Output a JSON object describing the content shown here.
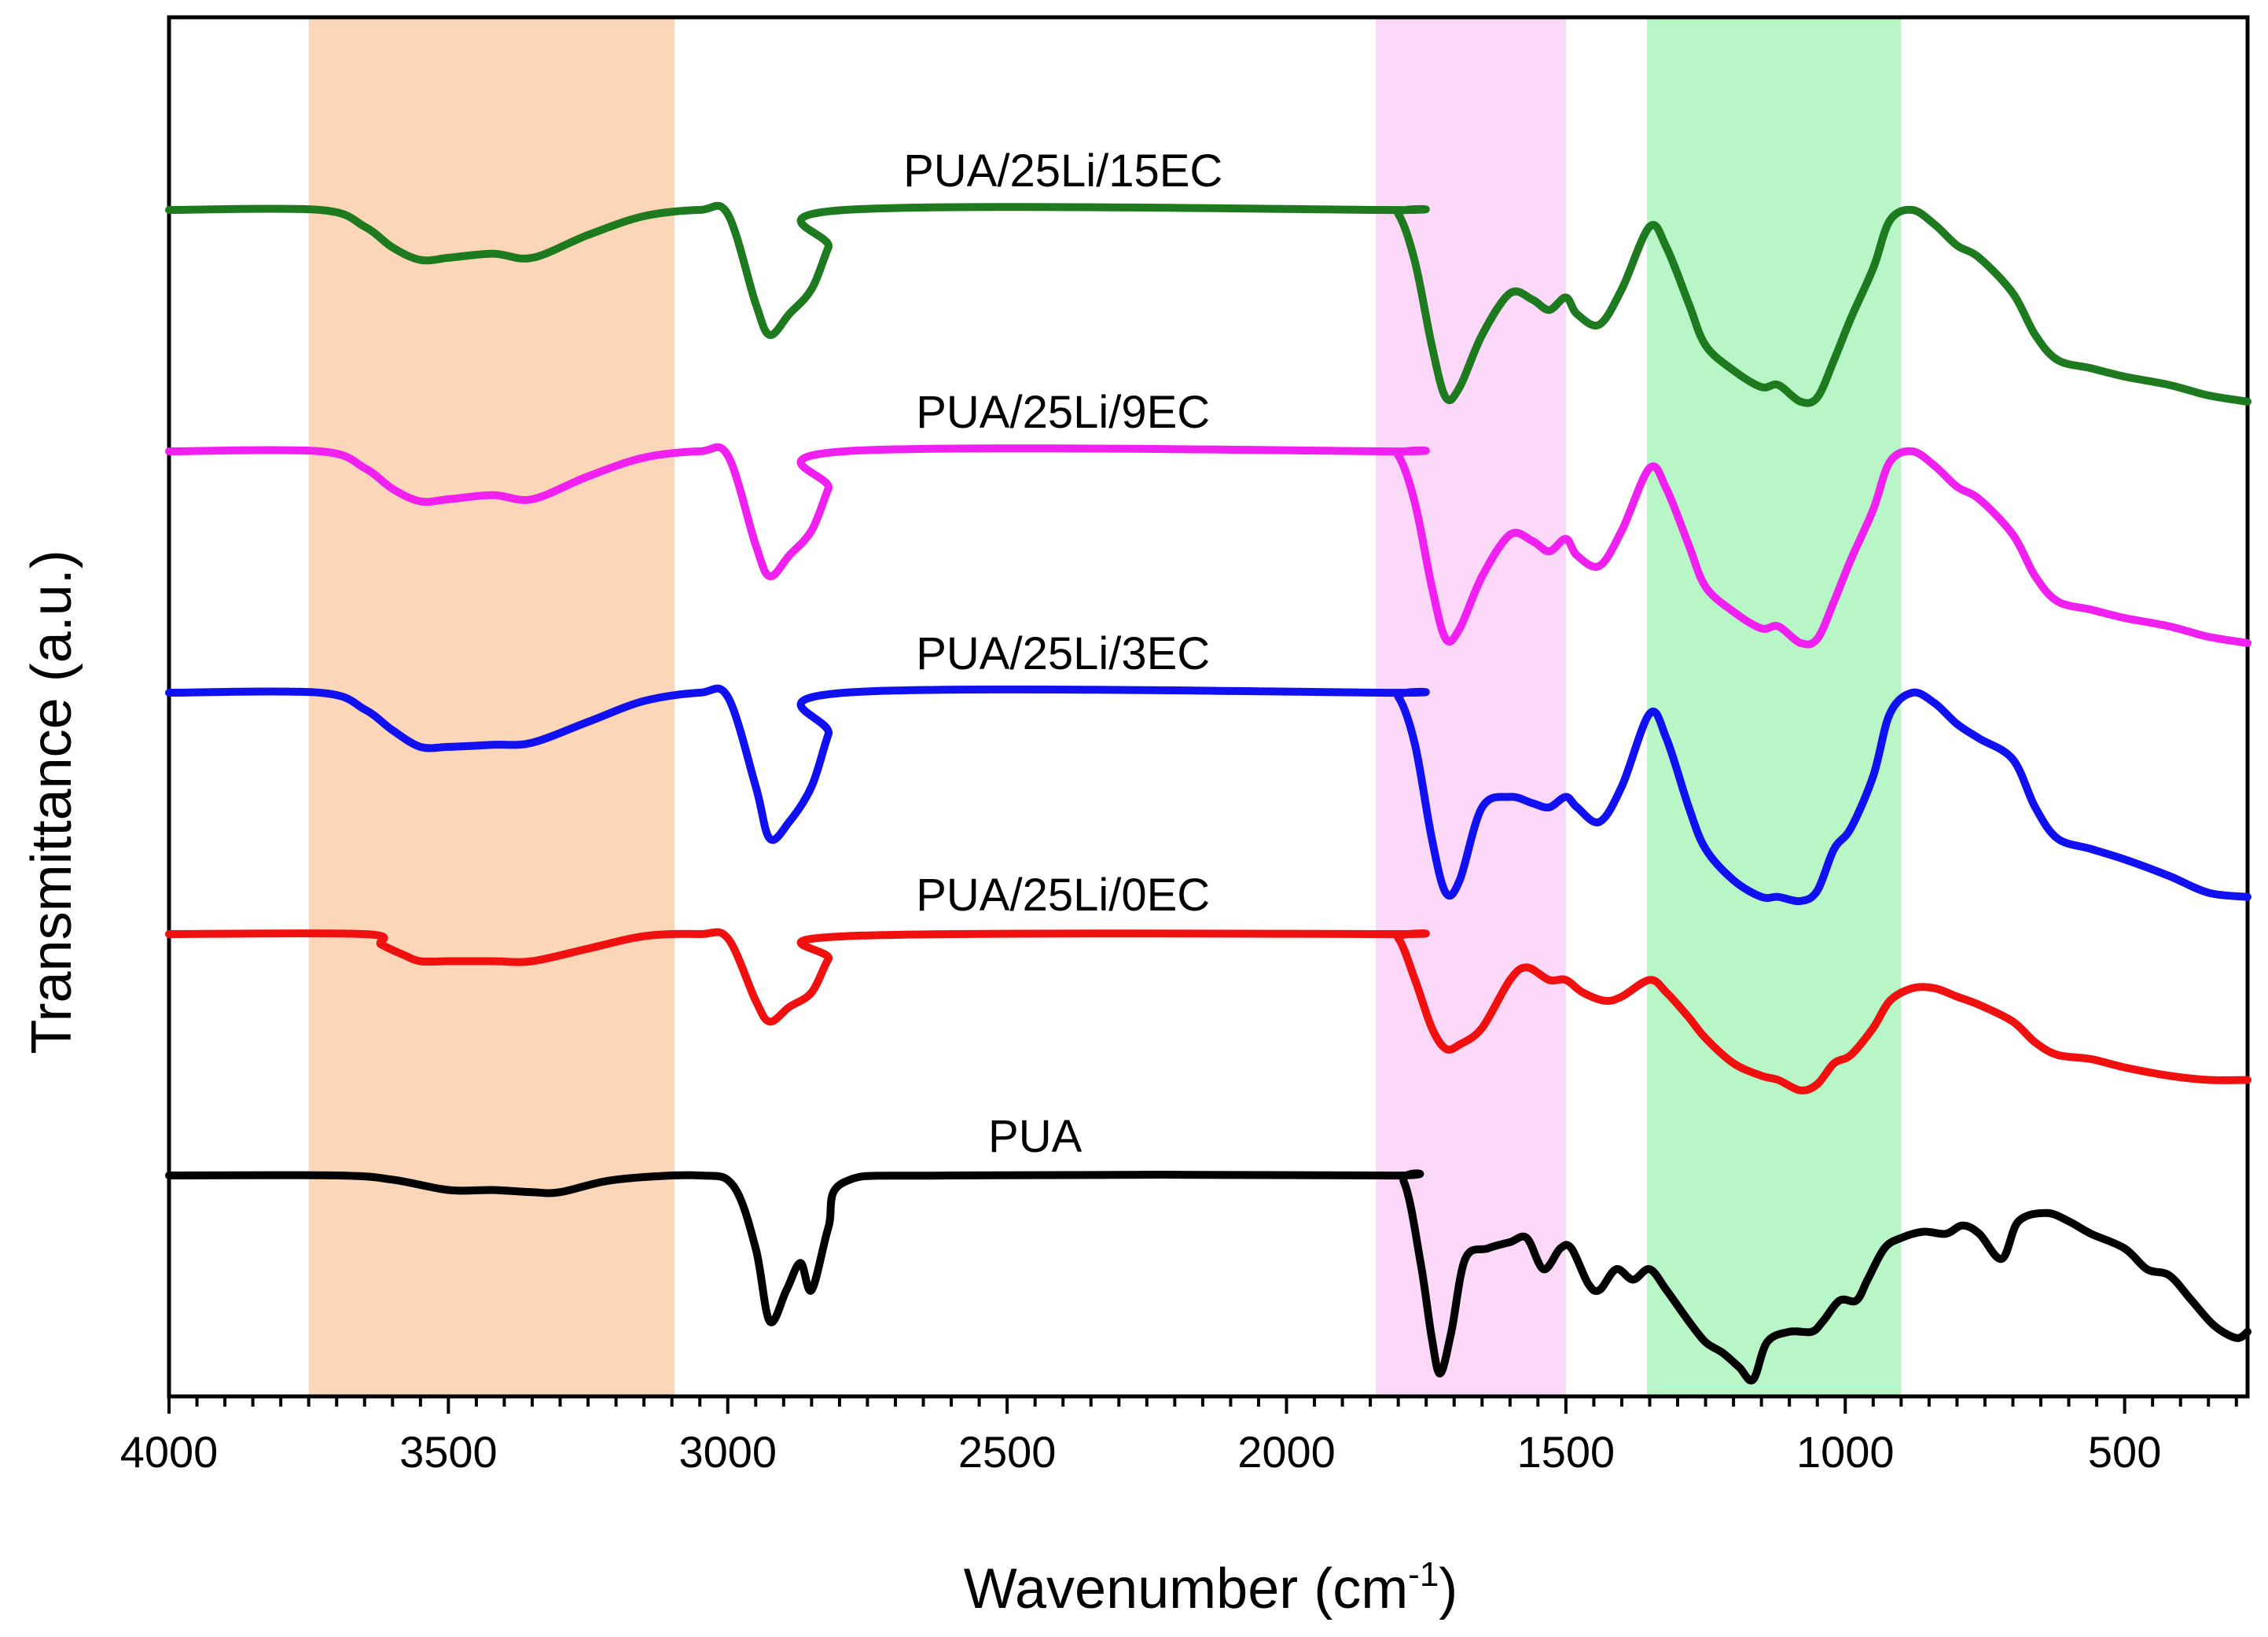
{
  "chart_data": {
    "type": "line",
    "title": "",
    "xlabel": "Wavenumber (cm",
    "xlabel_sup": "-1",
    "xlabel_close": ")",
    "ylabel": "Transmittance (a.u.)",
    "xlim": [
      4000,
      280
    ],
    "xticks": [
      {
        "value": 4000,
        "label": "4000"
      },
      {
        "value": 3500,
        "label": "3500"
      },
      {
        "value": 3000,
        "label": "3000"
      },
      {
        "value": 2500,
        "label": "2500"
      },
      {
        "value": 2000,
        "label": "2000"
      },
      {
        "value": 1500,
        "label": "1500"
      },
      {
        "value": 1000,
        "label": "1000"
      },
      {
        "value": 500,
        "label": "500"
      }
    ],
    "bands": [
      {
        "from": 3750,
        "to": 3095,
        "color": "#fbd6b9"
      },
      {
        "from": 1840,
        "to": 1500,
        "color": "#fbd8f7"
      },
      {
        "from": 1355,
        "to": 900,
        "color": "#b8f6c8"
      }
    ],
    "series": [
      {
        "name": "PUA/25Li/15EC",
        "color": "#1e7a1e",
        "offset": 4,
        "points": [
          [
            4000,
            1.0
          ],
          [
            3730,
            1.0
          ],
          [
            3650,
            0.92
          ],
          [
            3600,
            0.82
          ],
          [
            3550,
            0.76
          ],
          [
            3500,
            0.77
          ],
          [
            3420,
            0.79
          ],
          [
            3350,
            0.77
          ],
          [
            3250,
            0.88
          ],
          [
            3150,
            0.97
          ],
          [
            3050,
            1.0
          ],
          [
            3000,
            0.98
          ],
          [
            2950,
            0.55
          ],
          [
            2925,
            0.4
          ],
          [
            2890,
            0.5
          ],
          [
            2850,
            0.62
          ],
          [
            2820,
            0.82
          ],
          [
            2790,
            1.0
          ],
          [
            1830,
            1.0
          ],
          [
            1800,
            0.98
          ],
          [
            1770,
            0.75
          ],
          [
            1740,
            0.35
          ],
          [
            1715,
            0.1
          ],
          [
            1690,
            0.15
          ],
          [
            1650,
            0.4
          ],
          [
            1600,
            0.6
          ],
          [
            1560,
            0.57
          ],
          [
            1530,
            0.52
          ],
          [
            1500,
            0.58
          ],
          [
            1480,
            0.5
          ],
          [
            1440,
            0.45
          ],
          [
            1400,
            0.62
          ],
          [
            1350,
            0.92
          ],
          [
            1320,
            0.82
          ],
          [
            1280,
            0.55
          ],
          [
            1250,
            0.35
          ],
          [
            1200,
            0.23
          ],
          [
            1150,
            0.15
          ],
          [
            1120,
            0.16
          ],
          [
            1080,
            0.08
          ],
          [
            1050,
            0.1
          ],
          [
            1020,
            0.28
          ],
          [
            990,
            0.48
          ],
          [
            950,
            0.72
          ],
          [
            920,
            0.95
          ],
          [
            880,
            1.0
          ],
          [
            840,
            0.93
          ],
          [
            800,
            0.83
          ],
          [
            760,
            0.77
          ],
          [
            700,
            0.6
          ],
          [
            660,
            0.4
          ],
          [
            620,
            0.28
          ],
          [
            560,
            0.24
          ],
          [
            500,
            0.2
          ],
          [
            420,
            0.16
          ],
          [
            350,
            0.11
          ],
          [
            280,
            0.08
          ]
        ]
      },
      {
        "name": "PUA/25Li/9EC",
        "color": "#f020f0",
        "offset": 3,
        "points": [
          [
            4000,
            1.0
          ],
          [
            3730,
            1.0
          ],
          [
            3650,
            0.92
          ],
          [
            3600,
            0.82
          ],
          [
            3550,
            0.76
          ],
          [
            3500,
            0.77
          ],
          [
            3420,
            0.79
          ],
          [
            3350,
            0.77
          ],
          [
            3250,
            0.88
          ],
          [
            3150,
            0.97
          ],
          [
            3050,
            1.0
          ],
          [
            3000,
            0.98
          ],
          [
            2950,
            0.55
          ],
          [
            2925,
            0.4
          ],
          [
            2890,
            0.5
          ],
          [
            2850,
            0.62
          ],
          [
            2820,
            0.82
          ],
          [
            2790,
            1.0
          ],
          [
            1830,
            1.0
          ],
          [
            1800,
            0.98
          ],
          [
            1770,
            0.75
          ],
          [
            1740,
            0.35
          ],
          [
            1715,
            0.1
          ],
          [
            1690,
            0.15
          ],
          [
            1650,
            0.4
          ],
          [
            1600,
            0.6
          ],
          [
            1560,
            0.57
          ],
          [
            1530,
            0.52
          ],
          [
            1500,
            0.58
          ],
          [
            1480,
            0.5
          ],
          [
            1440,
            0.45
          ],
          [
            1400,
            0.62
          ],
          [
            1350,
            0.92
          ],
          [
            1320,
            0.82
          ],
          [
            1280,
            0.55
          ],
          [
            1250,
            0.35
          ],
          [
            1200,
            0.23
          ],
          [
            1150,
            0.15
          ],
          [
            1120,
            0.16
          ],
          [
            1080,
            0.08
          ],
          [
            1050,
            0.1
          ],
          [
            1020,
            0.28
          ],
          [
            990,
            0.48
          ],
          [
            950,
            0.72
          ],
          [
            920,
            0.95
          ],
          [
            880,
            1.0
          ],
          [
            840,
            0.93
          ],
          [
            800,
            0.83
          ],
          [
            760,
            0.77
          ],
          [
            700,
            0.6
          ],
          [
            660,
            0.4
          ],
          [
            620,
            0.28
          ],
          [
            560,
            0.24
          ],
          [
            500,
            0.2
          ],
          [
            420,
            0.16
          ],
          [
            350,
            0.11
          ],
          [
            280,
            0.08
          ]
        ]
      },
      {
        "name": "PUA/25Li/3EC",
        "color": "#1010f0",
        "offset": 2,
        "points": [
          [
            4000,
            1.0
          ],
          [
            3730,
            1.0
          ],
          [
            3650,
            0.92
          ],
          [
            3600,
            0.82
          ],
          [
            3550,
            0.74
          ],
          [
            3500,
            0.74
          ],
          [
            3420,
            0.75
          ],
          [
            3350,
            0.76
          ],
          [
            3250,
            0.86
          ],
          [
            3150,
            0.96
          ],
          [
            3050,
            1.0
          ],
          [
            3000,
            0.98
          ],
          [
            2950,
            0.55
          ],
          [
            2925,
            0.3
          ],
          [
            2890,
            0.38
          ],
          [
            2850,
            0.55
          ],
          [
            2820,
            0.8
          ],
          [
            2790,
            1.0
          ],
          [
            1830,
            1.0
          ],
          [
            1800,
            0.98
          ],
          [
            1770,
            0.75
          ],
          [
            1740,
            0.3
          ],
          [
            1715,
            0.04
          ],
          [
            1690,
            0.1
          ],
          [
            1650,
            0.45
          ],
          [
            1600,
            0.5
          ],
          [
            1560,
            0.47
          ],
          [
            1530,
            0.45
          ],
          [
            1500,
            0.5
          ],
          [
            1480,
            0.45
          ],
          [
            1440,
            0.38
          ],
          [
            1400,
            0.55
          ],
          [
            1350,
            0.9
          ],
          [
            1320,
            0.78
          ],
          [
            1280,
            0.45
          ],
          [
            1250,
            0.25
          ],
          [
            1200,
            0.1
          ],
          [
            1150,
            0.02
          ],
          [
            1120,
            0.02
          ],
          [
            1080,
            0.0
          ],
          [
            1050,
            0.05
          ],
          [
            1020,
            0.25
          ],
          [
            990,
            0.35
          ],
          [
            950,
            0.6
          ],
          [
            920,
            0.9
          ],
          [
            880,
            1.0
          ],
          [
            840,
            0.95
          ],
          [
            800,
            0.85
          ],
          [
            760,
            0.78
          ],
          [
            700,
            0.68
          ],
          [
            660,
            0.45
          ],
          [
            620,
            0.3
          ],
          [
            560,
            0.25
          ],
          [
            500,
            0.2
          ],
          [
            420,
            0.12
          ],
          [
            350,
            0.04
          ],
          [
            280,
            0.02
          ]
        ]
      },
      {
        "name": "PUA/25Li/0EC",
        "color": "#f01010",
        "offset": 1,
        "points": [
          [
            4000,
            1.0
          ],
          [
            3650,
            1.0
          ],
          [
            3620,
            0.95
          ],
          [
            3580,
            0.9
          ],
          [
            3550,
            0.87
          ],
          [
            3500,
            0.87
          ],
          [
            3420,
            0.87
          ],
          [
            3350,
            0.87
          ],
          [
            3250,
            0.93
          ],
          [
            3150,
            0.99
          ],
          [
            3050,
            1.0
          ],
          [
            3000,
            0.98
          ],
          [
            2950,
            0.68
          ],
          [
            2925,
            0.58
          ],
          [
            2890,
            0.65
          ],
          [
            2850,
            0.72
          ],
          [
            2820,
            0.88
          ],
          [
            2790,
            0.99
          ],
          [
            1830,
            1.0
          ],
          [
            1800,
            0.98
          ],
          [
            1770,
            0.78
          ],
          [
            1740,
            0.55
          ],
          [
            1715,
            0.45
          ],
          [
            1690,
            0.47
          ],
          [
            1650,
            0.55
          ],
          [
            1600,
            0.78
          ],
          [
            1570,
            0.84
          ],
          [
            1530,
            0.78
          ],
          [
            1500,
            0.78
          ],
          [
            1470,
            0.72
          ],
          [
            1430,
            0.68
          ],
          [
            1400,
            0.7
          ],
          [
            1350,
            0.78
          ],
          [
            1320,
            0.72
          ],
          [
            1280,
            0.6
          ],
          [
            1250,
            0.5
          ],
          [
            1200,
            0.38
          ],
          [
            1150,
            0.32
          ],
          [
            1120,
            0.3
          ],
          [
            1080,
            0.25
          ],
          [
            1050,
            0.28
          ],
          [
            1020,
            0.38
          ],
          [
            990,
            0.42
          ],
          [
            950,
            0.55
          ],
          [
            920,
            0.68
          ],
          [
            880,
            0.74
          ],
          [
            840,
            0.74
          ],
          [
            800,
            0.7
          ],
          [
            760,
            0.66
          ],
          [
            700,
            0.58
          ],
          [
            660,
            0.48
          ],
          [
            620,
            0.42
          ],
          [
            560,
            0.4
          ],
          [
            500,
            0.36
          ],
          [
            420,
            0.32
          ],
          [
            350,
            0.3
          ],
          [
            280,
            0.3
          ]
        ]
      },
      {
        "name": "PUA",
        "color": "#000000",
        "offset": 0,
        "points": [
          [
            4000,
            1.0
          ],
          [
            3700,
            1.0
          ],
          [
            3600,
            0.98
          ],
          [
            3500,
            0.93
          ],
          [
            3420,
            0.93
          ],
          [
            3350,
            0.92
          ],
          [
            3300,
            0.92
          ],
          [
            3200,
            0.98
          ],
          [
            3050,
            1.0
          ],
          [
            2990,
            0.95
          ],
          [
            2950,
            0.65
          ],
          [
            2925,
            0.3
          ],
          [
            2895,
            0.45
          ],
          [
            2870,
            0.58
          ],
          [
            2850,
            0.45
          ],
          [
            2820,
            0.75
          ],
          [
            2790,
            0.97
          ],
          [
            2600,
            1.0
          ],
          [
            1830,
            1.0
          ],
          [
            1790,
            0.97
          ],
          [
            1760,
            0.58
          ],
          [
            1740,
            0.22
          ],
          [
            1725,
            0.05
          ],
          [
            1705,
            0.25
          ],
          [
            1680,
            0.6
          ],
          [
            1640,
            0.65
          ],
          [
            1600,
            0.68
          ],
          [
            1570,
            0.7
          ],
          [
            1540,
            0.55
          ],
          [
            1510,
            0.65
          ],
          [
            1490,
            0.65
          ],
          [
            1460,
            0.48
          ],
          [
            1440,
            0.45
          ],
          [
            1410,
            0.55
          ],
          [
            1380,
            0.5
          ],
          [
            1350,
            0.55
          ],
          [
            1320,
            0.45
          ],
          [
            1280,
            0.3
          ],
          [
            1250,
            0.2
          ],
          [
            1220,
            0.15
          ],
          [
            1190,
            0.08
          ],
          [
            1165,
            0.02
          ],
          [
            1140,
            0.2
          ],
          [
            1100,
            0.25
          ],
          [
            1060,
            0.25
          ],
          [
            1040,
            0.3
          ],
          [
            1010,
            0.4
          ],
          [
            980,
            0.4
          ],
          [
            960,
            0.5
          ],
          [
            930,
            0.65
          ],
          [
            900,
            0.7
          ],
          [
            860,
            0.73
          ],
          [
            820,
            0.72
          ],
          [
            790,
            0.76
          ],
          [
            760,
            0.72
          ],
          [
            720,
            0.6
          ],
          [
            690,
            0.78
          ],
          [
            640,
            0.82
          ],
          [
            600,
            0.78
          ],
          [
            560,
            0.72
          ],
          [
            500,
            0.65
          ],
          [
            460,
            0.55
          ],
          [
            420,
            0.52
          ],
          [
            380,
            0.4
          ],
          [
            340,
            0.28
          ],
          [
            300,
            0.22
          ],
          [
            280,
            0.25
          ]
        ]
      }
    ]
  }
}
